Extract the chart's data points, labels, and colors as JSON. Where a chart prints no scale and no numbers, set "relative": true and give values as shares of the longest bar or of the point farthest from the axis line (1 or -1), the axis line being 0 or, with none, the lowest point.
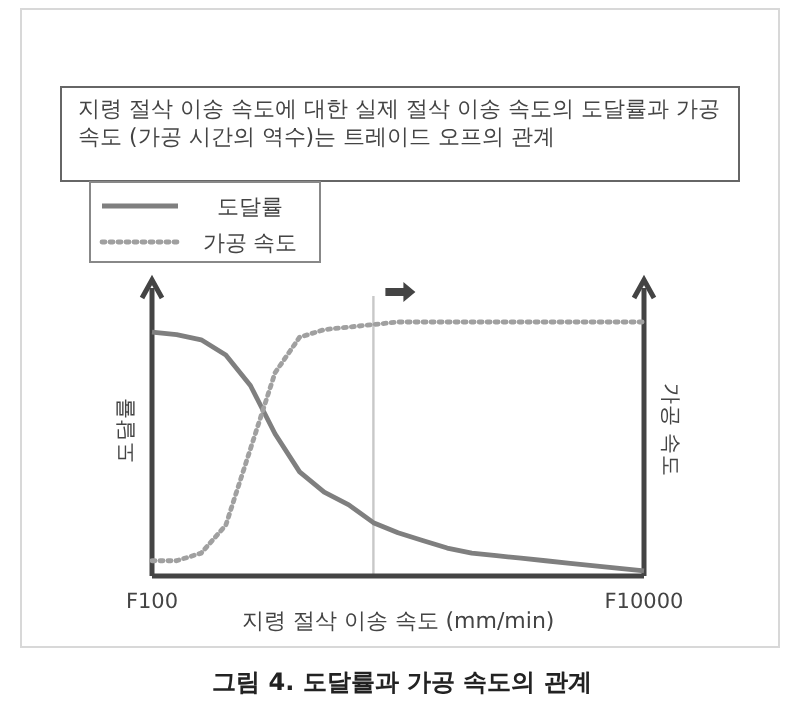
{
  "chart_data": {
    "type": "line",
    "title": "지령 절삭 이송 속도에 대한 실제 절삭 이송 속도의 도달률과 가공 속도 (가공 시간의 역수)는 트레이드 오프의 관계",
    "xlabel": "지령 절삭 이송 속도 (mm/min)",
    "ylabel": "도달률",
    "y2label": "가공 속도",
    "annotations": [
      "그림 4. 도달률과 가공 속도의 관계"
    ],
    "relative": true,
    "categories": [
      "F100",
      null,
      null,
      null,
      null,
      null,
      null,
      null,
      null,
      null,
      null,
      null,
      null,
      null,
      null,
      null,
      null,
      null,
      null,
      null,
      "F10000"
    ],
    "legend": "top left",
    "series": [
      {
        "name": "도달률",
        "color": "#7f7f7f",
        "line_style": "solid",
        "values": [
          0.96,
          0.95,
          0.93,
          0.87,
          0.75,
          0.56,
          0.41,
          0.33,
          0.28,
          0.21,
          0.17,
          0.14,
          0.11,
          0.09,
          0.08,
          0.07,
          0.06,
          0.05,
          0.04,
          0.03,
          0.02
        ]
      },
      {
        "name": "가공 속도",
        "color": "#a0a0a0",
        "line_style": "dotted",
        "values": [
          0.06,
          0.06,
          0.09,
          0.2,
          0.5,
          0.8,
          0.94,
          0.97,
          0.98,
          0.99,
          1,
          1,
          1,
          1,
          1,
          1,
          1,
          1,
          1,
          1,
          1
        ]
      }
    ]
  }
}
